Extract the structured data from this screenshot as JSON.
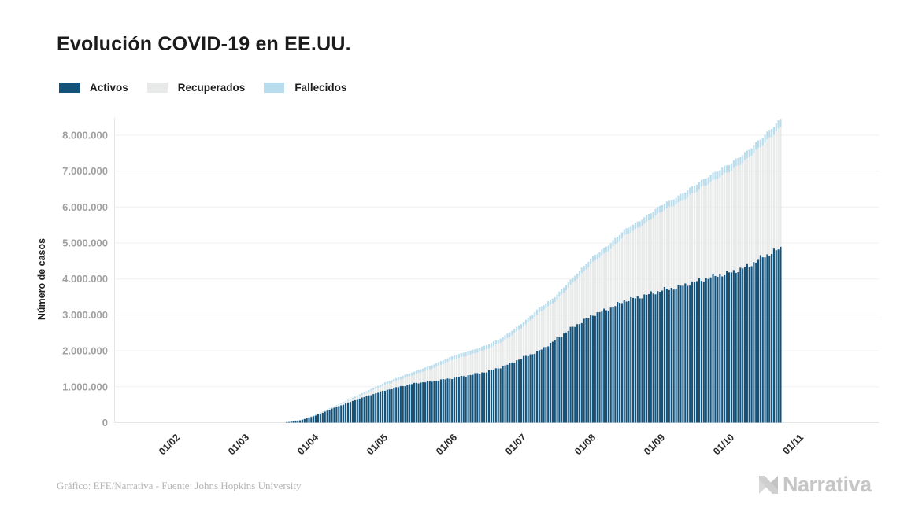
{
  "header": {
    "title": "Evolución COVID-19 en EE.UU."
  },
  "footer": {
    "credit": "Gráfico: EFE/Narrativa - Fuente: Johns Hopkins University",
    "brand": "Narrativa"
  },
  "colors": {
    "activos": "#12527b",
    "recuperados": "#e8e9e9",
    "fallecidos": "#b9ddec",
    "grid": "#f0f0f0",
    "axis": "#e6e6e6",
    "y_tick_text": "#a0a0a0",
    "x_tick_text": "#2b2b2b",
    "title_text": "#1b1b1b",
    "brand_gray_light": "#d9d9d9",
    "brand_gray_dark": "#c3c3c3"
  },
  "chart_data": {
    "type": "area",
    "subtype": "stacked-daily-bars",
    "title": "Evolución COVID-19 en EE.UU.",
    "xlabel": "",
    "ylabel": "Número de casos",
    "ylim": [
      0,
      8500000
    ],
    "grid": "horizontal",
    "legend_position": "top-left",
    "y_tick_labels": [
      "0",
      "1.000.000",
      "2.000.000",
      "3.000.000",
      "4.000.000",
      "5.000.000",
      "6.000.000",
      "7.000.000",
      "8.000.000"
    ],
    "x_tick_labels": [
      "01/02",
      "01/03",
      "01/04",
      "01/05",
      "01/06",
      "01/07",
      "01/08",
      "01/09",
      "01/10",
      "01/11"
    ],
    "x": [
      "01/02",
      "01/03",
      "10/03",
      "15/03",
      "20/03",
      "25/03",
      "01/04",
      "08/04",
      "15/04",
      "22/04",
      "01/05",
      "08/05",
      "15/05",
      "22/05",
      "01/06",
      "08/06",
      "15/06",
      "22/06",
      "01/07",
      "08/07",
      "15/07",
      "22/07",
      "01/08",
      "08/08",
      "15/08",
      "22/08",
      "01/09",
      "08/09",
      "15/09",
      "22/09",
      "01/10",
      "08/10",
      "15/10",
      "23/10"
    ],
    "series": [
      {
        "name": "Activos",
        "color": "#12527b",
        "values": [
          5,
          60,
          600,
          3400,
          18000,
          62000,
          200000,
          390000,
          557000,
          718000,
          900000,
          1010000,
          1107000,
          1156000,
          1248000,
          1332000,
          1421000,
          1560000,
          1823000,
          2000000,
          2290000,
          2616000,
          3005000,
          3161000,
          3393000,
          3499000,
          3688000,
          3779000,
          3916000,
          4051000,
          4187000,
          4340000,
          4609000,
          4850000
        ]
      },
      {
        "name": "Recuperados",
        "color": "#e8e9e9",
        "values": [
          0,
          7,
          15,
          60,
          150,
          360,
          8500,
          23000,
          52000,
          84000,
          153000,
          198000,
          250000,
          350000,
          520000,
          560000,
          620000,
          700000,
          849000,
          1060000,
          1075000,
          1210000,
          1461000,
          1623000,
          1798000,
          1947000,
          2202000,
          2333000,
          2495000,
          2646000,
          2840000,
          2999000,
          3124000,
          3370000
        ]
      },
      {
        "name": "Fallecidos",
        "color": "#b9ddec",
        "values": [
          0,
          1,
          30,
          60,
          250,
          940,
          4800,
          14700,
          28000,
          47000,
          65000,
          77000,
          87000,
          95000,
          105000,
          111000,
          116000,
          120000,
          128000,
          133000,
          138000,
          144000,
          154000,
          161000,
          169000,
          176000,
          184000,
          189000,
          195000,
          200000,
          207000,
          211000,
          217000,
          223000
        ]
      }
    ]
  }
}
